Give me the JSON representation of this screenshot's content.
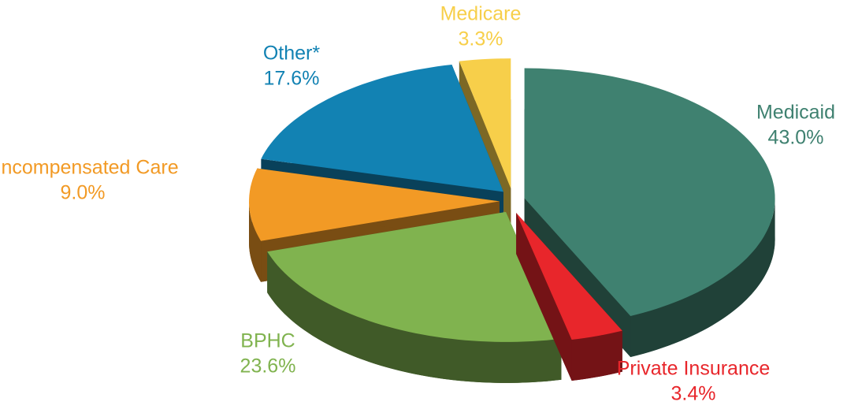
{
  "chart_data": {
    "type": "pie",
    "categories": [
      "Medicaid",
      "Private Insurance",
      "BPHC",
      "Uncompensated Care",
      "Other*",
      "Medicare"
    ],
    "values": [
      43.0,
      3.4,
      23.6,
      9.0,
      17.6,
      3.3
    ],
    "value_labels": [
      "43.0%",
      "3.4%",
      "23.6%",
      "9.0%",
      "17.6%",
      "3.3%"
    ],
    "colors": [
      "#3f8170",
      "#e8262b",
      "#80b34f",
      "#f29a25",
      "#1282b3",
      "#f7cf4a"
    ]
  }
}
